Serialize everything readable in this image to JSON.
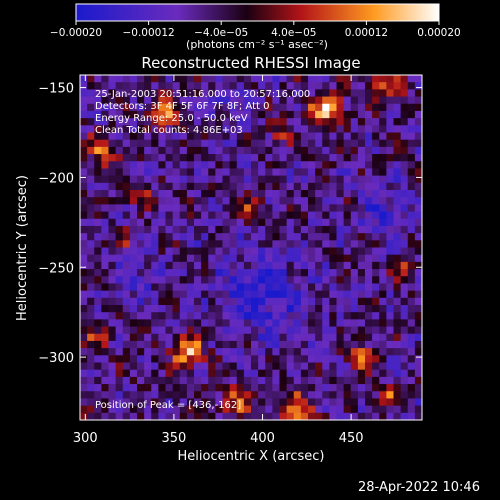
{
  "chart_data": {
    "type": "heatmap",
    "title": "Reconstructed RHESSI Image",
    "xlabel": "Heliocentric X (arcsec)",
    "ylabel": "Heliocentric Y (arcsec)",
    "xlim": [
      297,
      490
    ],
    "ylim": [
      -335,
      -143
    ],
    "x_ticks": [
      300,
      350,
      400,
      450
    ],
    "x_tick_labels": [
      "300",
      "350",
      "400",
      "450"
    ],
    "y_ticks": [
      -150,
      -200,
      -250,
      -300
    ],
    "y_tick_labels": [
      "−150",
      "−200",
      "−250",
      "−300"
    ],
    "colorbar": {
      "range": [
        -0.0002,
        0.0002
      ],
      "ticks": [
        -0.0002,
        -0.00012,
        -4e-05,
        4e-05,
        0.00012,
        0.0002
      ],
      "tick_labels": [
        "−0.00020",
        "−0.00012",
        "−4.0e−05",
        "4.0e−05",
        "0.00012",
        "0.00020"
      ],
      "unit_label": "(photons cm⁻² s⁻¹ asec⁻²)",
      "colors": [
        "#1a1acc",
        "#6a2bbd",
        "#1a0012",
        "#b31418",
        "#ff9a20",
        "#ffffff"
      ]
    },
    "annotations": [
      "25-Jan-2003 20:51:16.000 to 20:57:16.000",
      "Detectors: 3F 4F 5F 6F 7F 8F; Att 0",
      "Energy Range: 25.0 - 50.0 keV",
      "Clean    Total counts: 4.86E+03",
      "Position of Peak = [436,-162]"
    ],
    "grid": false
  },
  "timestamp": "28-Apr-2022 10:46"
}
